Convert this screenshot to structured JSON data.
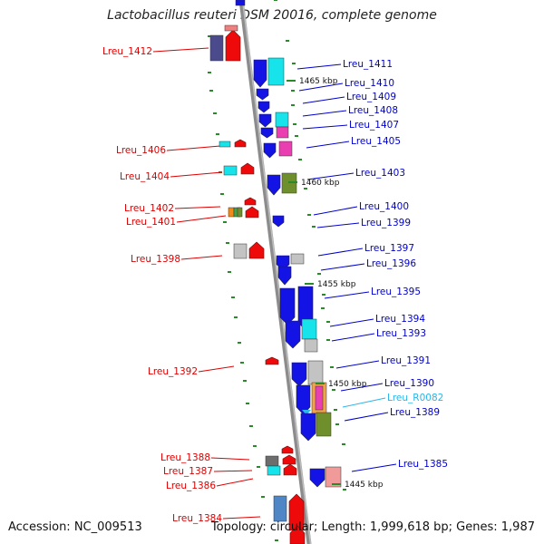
{
  "title": "Lactobacillus reuteri DSM 20016, complete genome",
  "footer": {
    "accession": "Accession: NC_009513",
    "stats": "Topology: circular; Length: 1,999,618 bp; Genes: 1,987"
  },
  "colors": {
    "left_label": "#dd0000",
    "right_label": "#0000cc",
    "rna_label": "#2ab5e8",
    "backbone": "#8c8c8c",
    "tick": "#2a8a2a"
  },
  "kbp_marks": [
    {
      "text": "1465 kbp"
    },
    {
      "text": "1460 kbp"
    },
    {
      "text": "1455 kbp"
    },
    {
      "text": "1450 kbp"
    },
    {
      "text": "1445 kbp"
    }
  ],
  "left_labels": [
    "Lreu_1412",
    "Lreu_1406",
    "Lreu_1404",
    "Lreu_1402",
    "Lreu_1401",
    "Lreu_1398",
    "Lreu_1392",
    "Lreu_1388",
    "Lreu_1387",
    "Lreu_1386",
    "Lreu_1384"
  ],
  "right_labels": [
    "Lreu_1411",
    "Lreu_1410",
    "Lreu_1409",
    "Lreu_1408",
    "Lreu_1407",
    "Lreu_1405",
    "Lreu_1403",
    "Lreu_1400",
    "Lreu_1399",
    "Lreu_1397",
    "Lreu_1396",
    "Lreu_1395",
    "Lreu_1394",
    "Lreu_1393",
    "Lreu_1391",
    "Lreu_1390",
    "Lreu_R0082",
    "Lreu_1389",
    "Lreu_1385"
  ]
}
